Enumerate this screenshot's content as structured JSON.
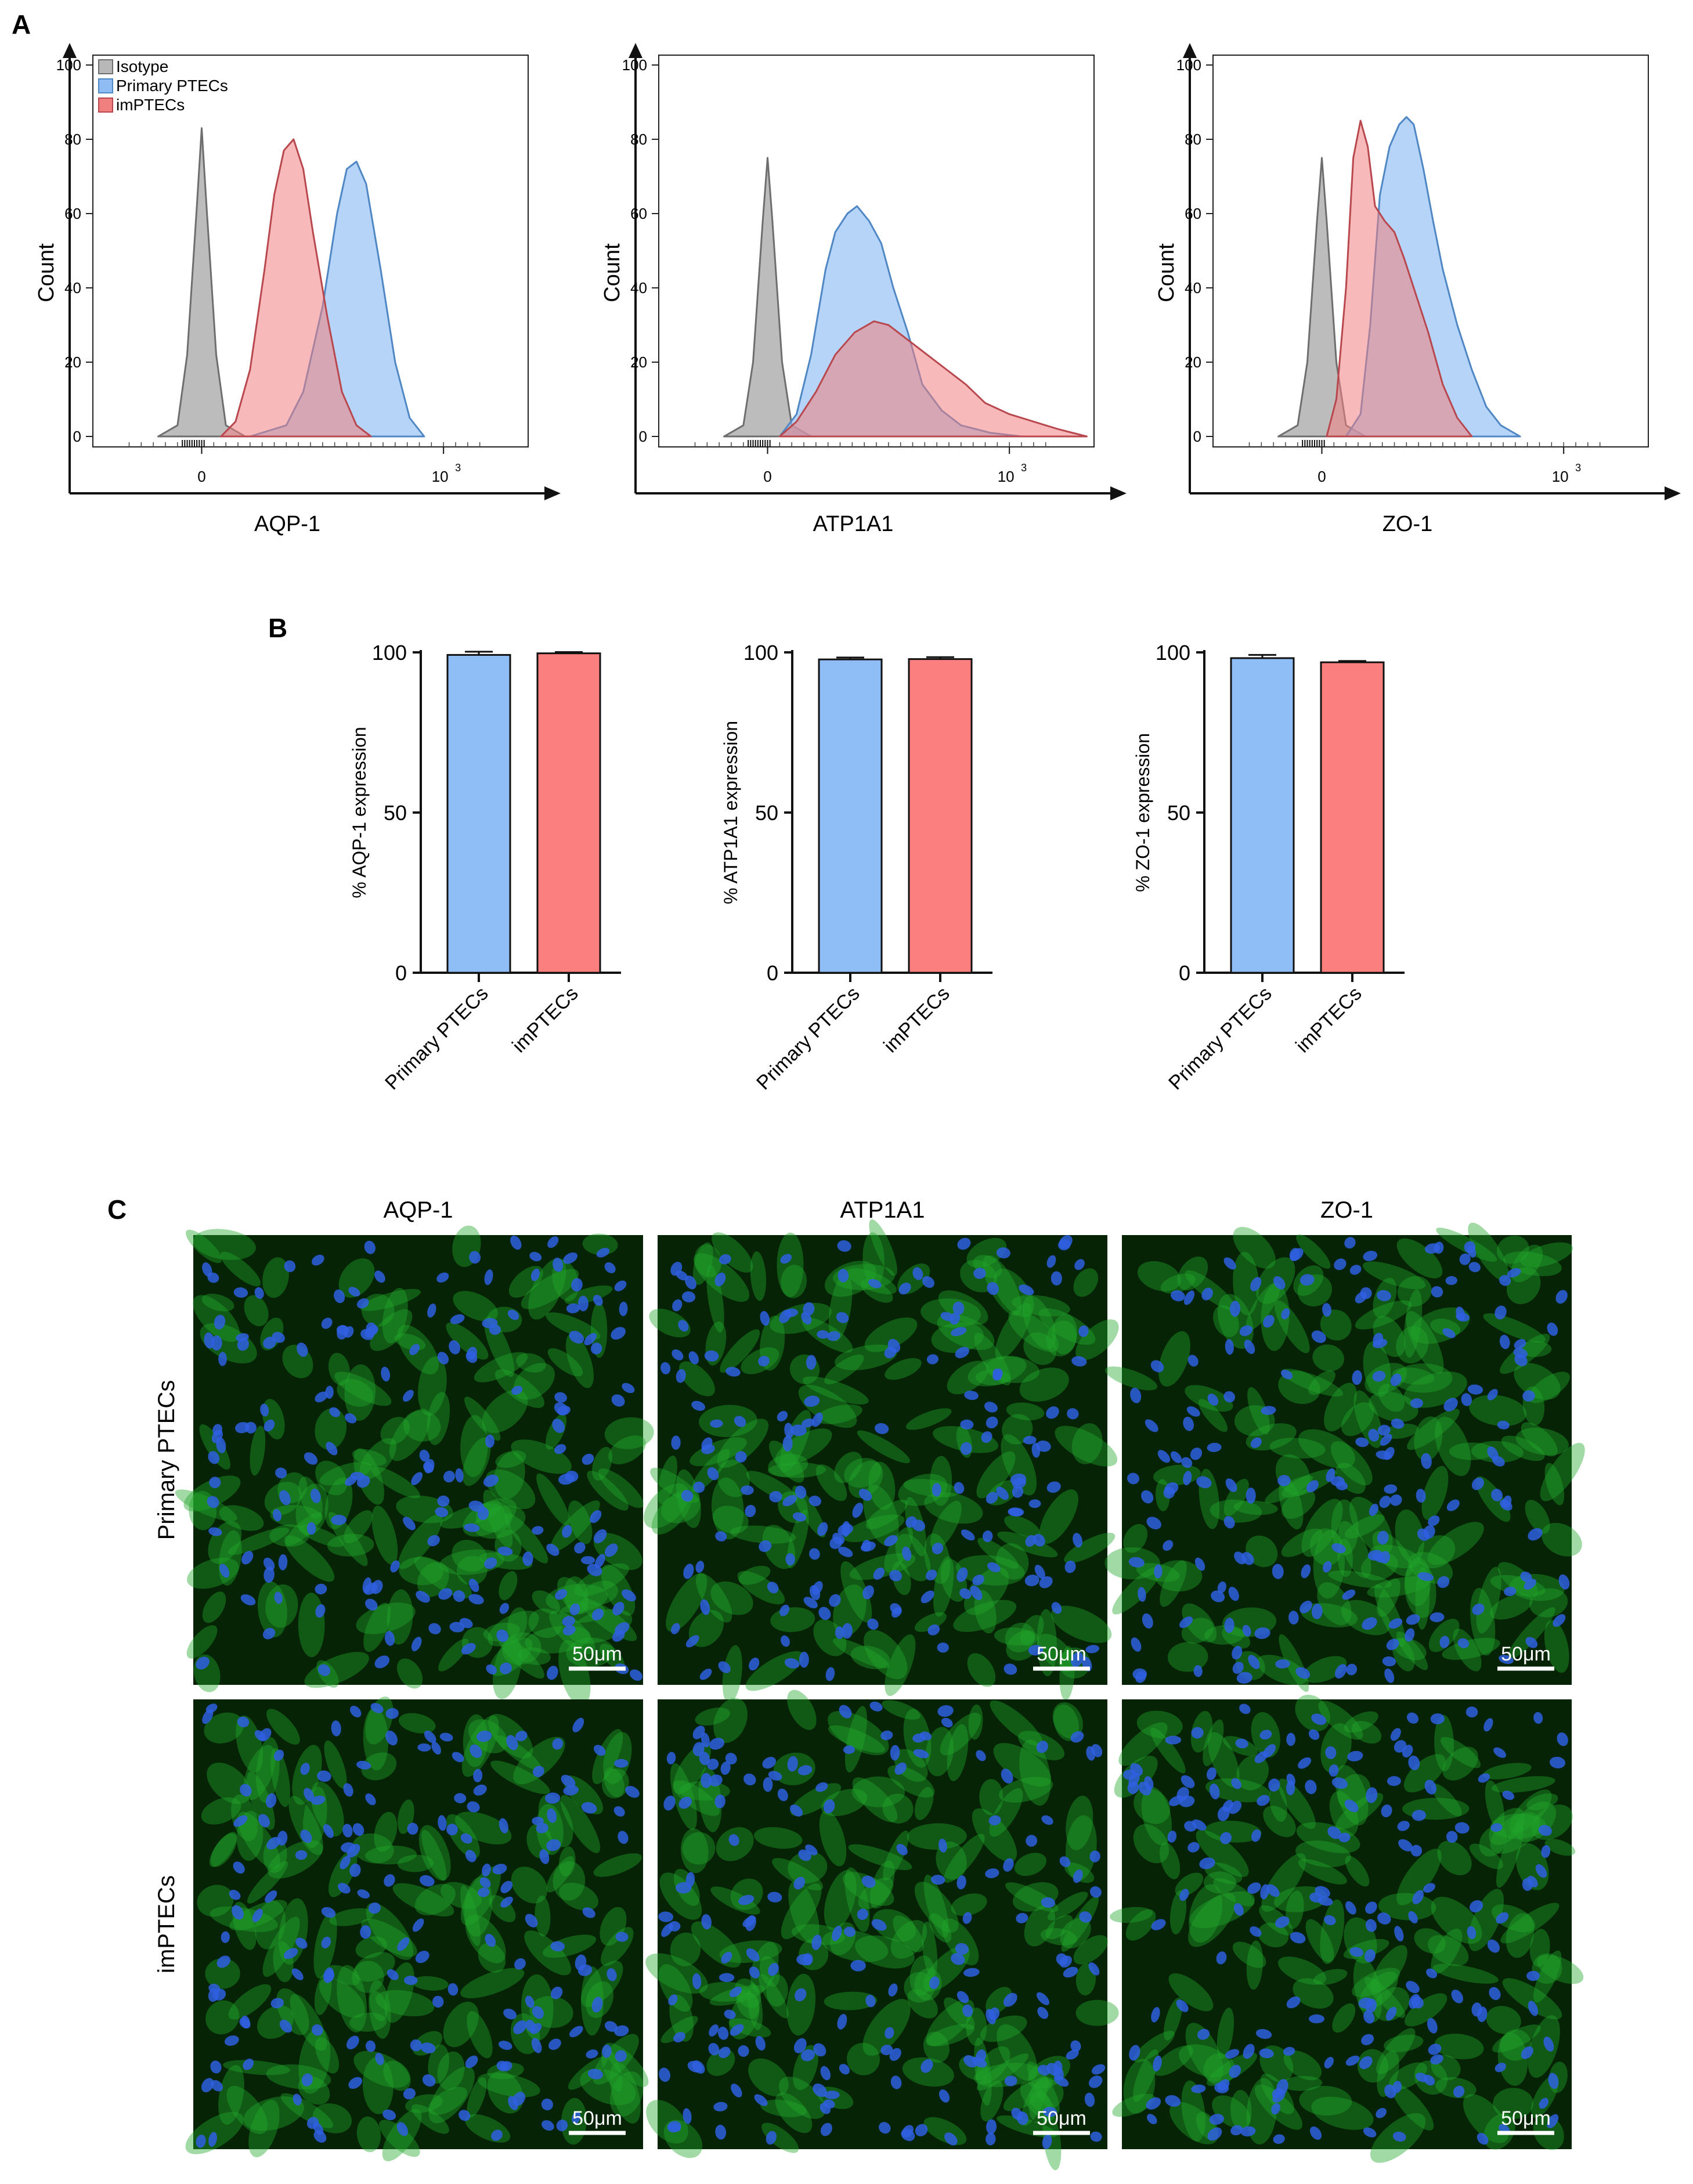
{
  "panels": {
    "a": "A",
    "b": "B",
    "c": "C"
  },
  "colors": {
    "isotype": "#b8b8b8",
    "isotype_stroke": "#6e6e6e",
    "primary": "#8fbdf3",
    "primary_stroke": "#4f86c4",
    "im": "#f08080",
    "im_stroke": "#b8474e",
    "bar_primary": "#8fbdf5",
    "bar_im": "#fb7f7f",
    "cell_bg": "#062306",
    "cyto": "#22a82c",
    "nucleus": "#2f5fe0"
  },
  "histograms": {
    "y_label": "Count",
    "ylim": [
      0,
      100
    ],
    "y_ticks": [
      "0",
      "20",
      "40",
      "60",
      "80",
      "100"
    ],
    "x_tick_zero": "0",
    "x_tick_high": "10",
    "x_tick_exp": "3",
    "legend": [
      "Isotype",
      "Primary PTECs",
      "imPTECs"
    ],
    "plots": [
      {
        "marker": "AQP-1",
        "isotype": {
          "x": [
            -0.18,
            -0.1,
            -0.06,
            -0.02,
            0.0,
            0.02,
            0.06,
            0.1,
            0.18
          ],
          "y": [
            0,
            3,
            22,
            62,
            83,
            62,
            22,
            3,
            0
          ]
        },
        "primary": {
          "x": [
            0.2,
            0.35,
            0.42,
            0.5,
            0.56,
            0.6,
            0.64,
            0.68,
            0.74,
            0.8,
            0.86,
            0.92
          ],
          "y": [
            0,
            3,
            12,
            35,
            60,
            72,
            74,
            68,
            45,
            20,
            5,
            0
          ]
        },
        "imptecs": {
          "x": [
            0.08,
            0.14,
            0.2,
            0.26,
            0.3,
            0.34,
            0.38,
            0.42,
            0.46,
            0.52,
            0.58,
            0.64,
            0.7
          ],
          "y": [
            0,
            4,
            18,
            45,
            65,
            77,
            80,
            72,
            55,
            32,
            12,
            3,
            0
          ]
        }
      },
      {
        "marker": "ATP1A1",
        "isotype": {
          "x": [
            -0.18,
            -0.1,
            -0.06,
            -0.02,
            0.0,
            0.02,
            0.06,
            0.1,
            0.18
          ],
          "y": [
            0,
            3,
            20,
            58,
            75,
            58,
            20,
            3,
            0
          ]
        },
        "primary": {
          "x": [
            0.05,
            0.12,
            0.18,
            0.24,
            0.28,
            0.33,
            0.37,
            0.42,
            0.47,
            0.52,
            0.58,
            0.64,
            0.72,
            0.8,
            0.92,
            1.05
          ],
          "y": [
            0,
            6,
            22,
            45,
            55,
            60,
            62,
            58,
            52,
            40,
            28,
            14,
            7,
            3,
            1,
            0
          ]
        },
        "imptecs": {
          "x": [
            0.05,
            0.12,
            0.2,
            0.28,
            0.36,
            0.44,
            0.5,
            0.58,
            0.66,
            0.74,
            0.82,
            0.9,
            1.0,
            1.1,
            1.2,
            1.32
          ],
          "y": [
            0,
            4,
            12,
            22,
            28,
            31,
            30,
            26,
            22,
            18,
            14,
            9,
            6,
            4,
            2,
            0
          ]
        }
      },
      {
        "marker": "ZO-1",
        "isotype": {
          "x": [
            -0.18,
            -0.1,
            -0.06,
            -0.02,
            0.0,
            0.02,
            0.06,
            0.1,
            0.18
          ],
          "y": [
            0,
            3,
            20,
            58,
            75,
            58,
            20,
            3,
            0
          ]
        },
        "primary": {
          "x": [
            0.1,
            0.16,
            0.2,
            0.24,
            0.28,
            0.32,
            0.35,
            0.38,
            0.42,
            0.46,
            0.5,
            0.56,
            0.62,
            0.68,
            0.74,
            0.82
          ],
          "y": [
            0,
            6,
            30,
            65,
            78,
            84,
            86,
            84,
            72,
            58,
            45,
            30,
            18,
            8,
            3,
            0
          ]
        },
        "imptecs": {
          "x": [
            0.02,
            0.06,
            0.1,
            0.13,
            0.16,
            0.19,
            0.22,
            0.26,
            0.3,
            0.34,
            0.38,
            0.44,
            0.5,
            0.56,
            0.62
          ],
          "y": [
            0,
            10,
            40,
            75,
            85,
            78,
            62,
            58,
            55,
            48,
            40,
            28,
            14,
            5,
            0
          ]
        }
      }
    ]
  },
  "chart_data": [
    {
      "type": "bar",
      "categories": [
        "Primary PTECs",
        "imPTECs"
      ],
      "values": [
        99.2,
        99.7
      ],
      "errors": [
        1.0,
        0.4
      ],
      "ylabel": "% AQP-1 expression",
      "ylim": [
        0,
        100
      ],
      "y_ticks": [
        "0",
        "50",
        "100"
      ]
    },
    {
      "type": "bar",
      "categories": [
        "Primary PTECs",
        "imPTECs"
      ],
      "values": [
        97.8,
        97.9
      ],
      "errors": [
        0.6,
        0.6
      ],
      "ylabel": "% ATP1A1 expression",
      "ylim": [
        0,
        100
      ],
      "y_ticks": [
        "0",
        "50",
        "100"
      ]
    },
    {
      "type": "bar",
      "categories": [
        "Primary PTECs",
        "imPTECs"
      ],
      "values": [
        98.2,
        96.9
      ],
      "errors": [
        1.0,
        0.4
      ],
      "ylabel": "% ZO-1 expression",
      "ylim": [
        0,
        100
      ],
      "y_ticks": [
        "0",
        "50",
        "100"
      ]
    }
  ],
  "micrographs": {
    "columns": [
      "AQP-1",
      "ATP1A1",
      "ZO-1"
    ],
    "rows": [
      "Primary PTECs",
      "imPTECs"
    ],
    "scale_bar": "50μm"
  }
}
